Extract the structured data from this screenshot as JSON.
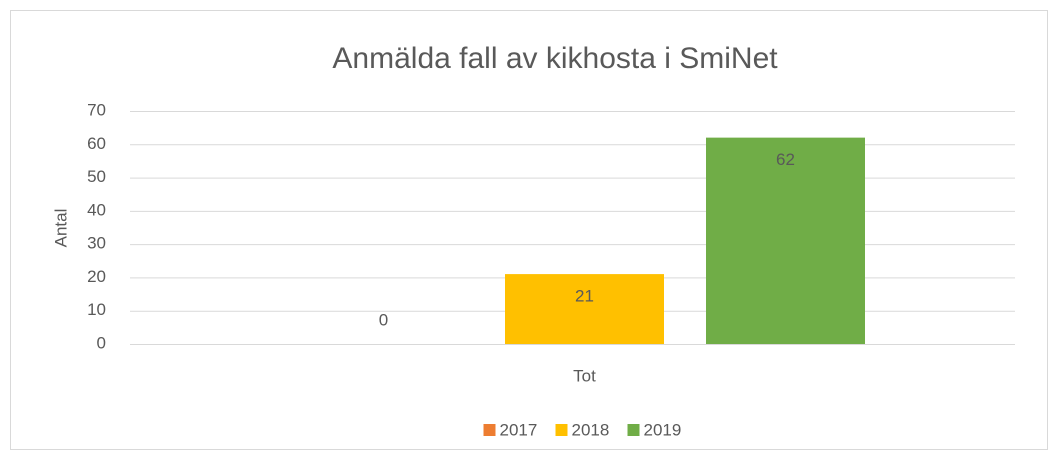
{
  "chart_data": {
    "type": "bar",
    "title": "Anmälda fall av kikhosta i SmiNet",
    "y_label": "Antal",
    "categories": [
      "Tot"
    ],
    "series": [
      {
        "name": "2017",
        "color": "#ed7d31",
        "values": [
          0
        ]
      },
      {
        "name": "2018",
        "color": "#ffc000",
        "values": [
          21
        ]
      },
      {
        "name": "2019",
        "color": "#70ad47",
        "values": [
          62
        ]
      }
    ],
    "ylim": [
      0,
      70
    ],
    "yticks": [
      0,
      10,
      20,
      30,
      40,
      50,
      60,
      70
    ],
    "grid": true,
    "legend": "bottom",
    "data_labels": true
  }
}
